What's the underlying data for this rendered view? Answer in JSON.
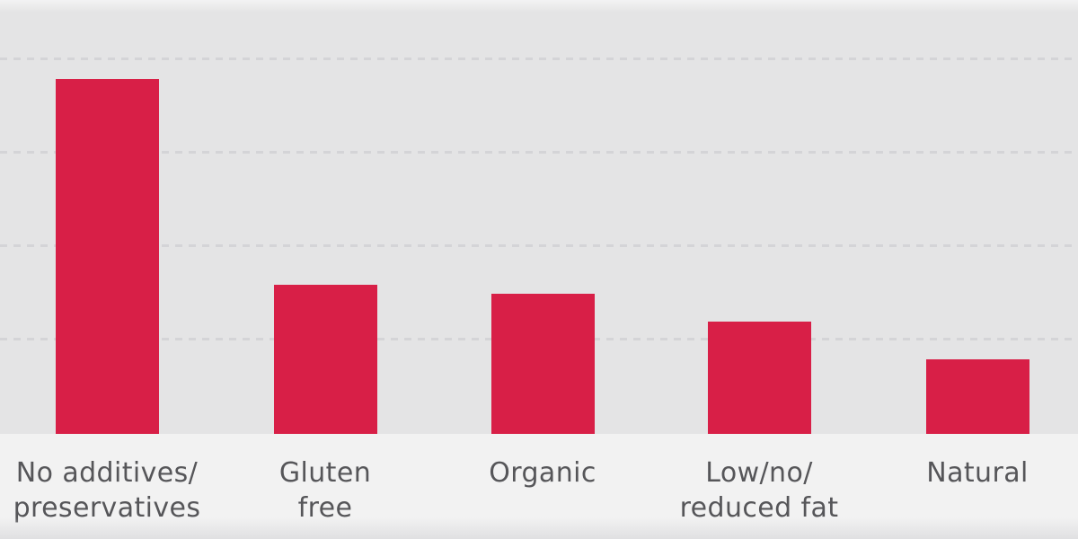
{
  "colors": {
    "bar": "#d81f47",
    "chart_bg": "#e4e4e5",
    "label_bg": "#f2f2f2",
    "gridline": "#cfcfd2",
    "label_text": "#565659"
  },
  "chart_data": {
    "type": "bar",
    "title": "",
    "xlabel": "",
    "ylabel": "",
    "categories": [
      "No additives/\npreservatives",
      "Gluten\nfree",
      "Organic",
      "Low/no/\nreduced fat",
      "Natural"
    ],
    "values": [
      38,
      16,
      15,
      12,
      8
    ],
    "ylim": [
      0,
      46
    ],
    "gridline_values": [
      10,
      20,
      30,
      40
    ],
    "gridline_style": "dashed",
    "grid": "horizontal only",
    "legend": "none",
    "value_labels_shown": false,
    "axis_tick_labels_shown": false
  }
}
